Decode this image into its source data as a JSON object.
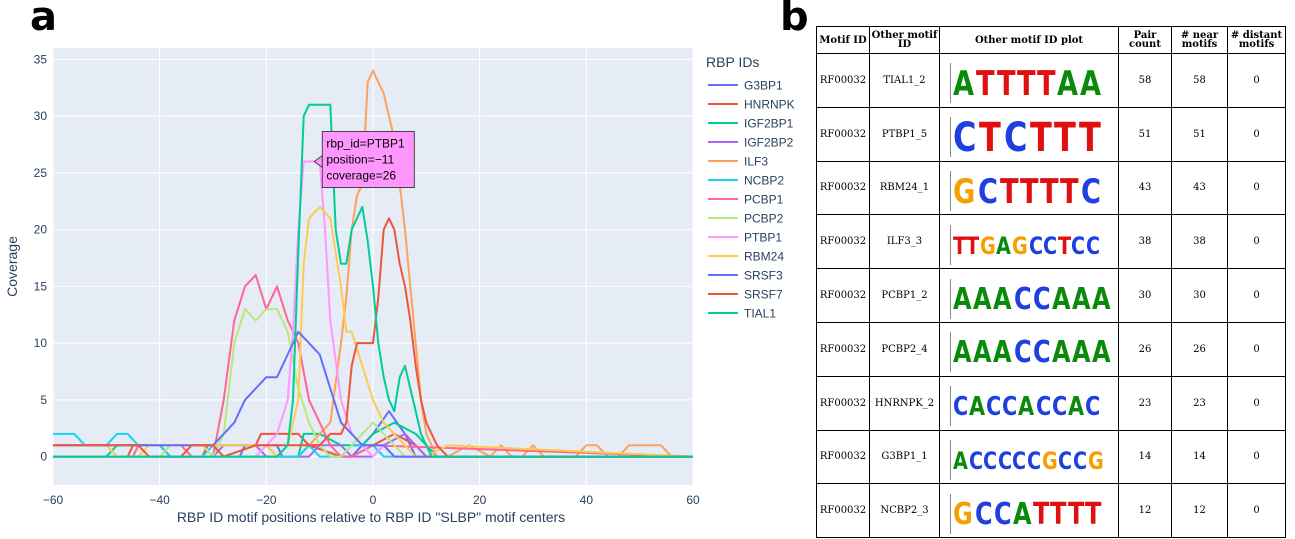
{
  "panel_a_letter": "a",
  "panel_b_letter": "b",
  "chart_data": {
    "type": "line",
    "xlabel": "RBP ID motif positions relative to RBP ID \"SLBP\" motif centers",
    "ylabel": "Coverage",
    "xlim": [
      -60,
      60
    ],
    "ylim": [
      -2.5,
      36
    ],
    "xticks": [
      -60,
      -40,
      -20,
      0,
      20,
      40,
      60
    ],
    "xtick_labels": [
      "−60",
      "−40",
      "−20",
      "0",
      "20",
      "40",
      "60"
    ],
    "yticks": [
      0,
      5,
      10,
      15,
      20,
      25,
      30,
      35
    ],
    "legend_title": "RBP IDs",
    "legend_position": "right",
    "grid": true,
    "series": [
      {
        "name": "G3BP1",
        "color": "#636efa",
        "x": [
          -60,
          -25,
          -24,
          -18,
          -17,
          -14,
          -12,
          -10,
          -8,
          -4,
          -2,
          0,
          3,
          6,
          8,
          20,
          60
        ],
        "y": [
          0,
          0,
          1,
          1,
          0,
          0,
          1,
          1,
          0,
          0,
          1,
          2,
          4,
          2,
          0,
          0,
          0
        ]
      },
      {
        "name": "HNRNPK",
        "color": "#ef553b",
        "x": [
          -60,
          -46,
          -45,
          -40,
          -38,
          -32,
          -31,
          -22,
          -21,
          -14,
          -12,
          -6,
          -4,
          0,
          4,
          8,
          10,
          60
        ],
        "y": [
          0,
          0,
          1,
          1,
          0,
          0,
          1,
          1,
          2,
          2,
          1,
          0,
          0,
          1,
          2,
          1,
          0,
          0
        ]
      },
      {
        "name": "IGF2BP1",
        "color": "#00cc96",
        "x": [
          -60,
          -50,
          -48,
          -40,
          -38,
          -14,
          -13,
          -10,
          -6,
          -2,
          0,
          4,
          8,
          12,
          60
        ],
        "y": [
          0,
          0,
          1,
          1,
          0,
          0,
          2,
          2,
          1,
          1,
          2,
          3,
          2,
          0,
          0
        ]
      },
      {
        "name": "IGF2BP2",
        "color": "#ab63fa",
        "x": [
          -60,
          -30,
          -28,
          -22,
          -20,
          -12,
          -10,
          -6,
          -4,
          0,
          2,
          6,
          10,
          60
        ],
        "y": [
          0,
          0,
          1,
          1,
          0,
          0,
          1,
          1,
          0,
          0,
          1,
          2,
          0,
          0
        ]
      },
      {
        "name": "ILF3",
        "color": "#ffa15a",
        "x": [
          -60,
          -14,
          -12,
          -10,
          -8,
          -6,
          -5,
          -4,
          -3,
          -2,
          -1,
          0,
          1,
          2,
          3,
          4,
          5,
          6,
          7,
          8,
          9,
          10,
          11,
          12,
          14,
          18,
          22,
          24,
          26,
          28,
          30,
          32,
          34,
          36,
          38,
          40,
          42,
          44,
          46,
          48,
          50,
          52,
          54,
          56,
          58,
          60
        ],
        "y": [
          0,
          0,
          1,
          2,
          3,
          10,
          14,
          20,
          23,
          24,
          33,
          34,
          33,
          32,
          30,
          28,
          24,
          20,
          15,
          10,
          5,
          2,
          1,
          0,
          0,
          1,
          0,
          1,
          0,
          0,
          1,
          0,
          0,
          0,
          0,
          1,
          1,
          0,
          0,
          1,
          1,
          1,
          1,
          0,
          0,
          0
        ]
      },
      {
        "name": "NCBP2",
        "color": "#19d3f3",
        "x": [
          -60,
          -56,
          -54,
          -50,
          -48,
          -46,
          -44,
          -40,
          -38,
          -32,
          -30,
          -20,
          -18,
          -14,
          -12,
          -10,
          -6,
          -4,
          0,
          2,
          60
        ],
        "y": [
          2,
          2,
          1,
          1,
          2,
          2,
          1,
          1,
          0,
          0,
          1,
          1,
          0,
          0,
          1,
          0,
          0,
          1,
          1,
          0,
          0
        ]
      },
      {
        "name": "PCBP1",
        "color": "#ff6692",
        "x": [
          -60,
          -45,
          -44,
          -36,
          -34,
          -30,
          -28,
          -26,
          -24,
          -22,
          -20,
          -18,
          -16,
          -14,
          -12,
          -10,
          -8,
          -6,
          -4,
          0,
          60
        ],
        "y": [
          0,
          0,
          1,
          1,
          0,
          0,
          5,
          12,
          15,
          16,
          13,
          15,
          12,
          10,
          5,
          3,
          1,
          0,
          0,
          1,
          0
        ]
      },
      {
        "name": "PCBP2",
        "color": "#b6e880",
        "x": [
          -60,
          -40,
          -38,
          -32,
          -30,
          -28,
          -26,
          -24,
          -22,
          -20,
          -18,
          -16,
          -14,
          -12,
          -10,
          -8,
          -6,
          -4,
          -2,
          0,
          2,
          4,
          6,
          8,
          10,
          60
        ],
        "y": [
          0,
          0,
          1,
          1,
          0,
          2,
          10,
          13,
          12,
          13,
          13,
          11,
          6,
          3,
          1,
          0,
          0,
          1,
          2,
          3,
          2,
          1,
          0,
          0,
          0,
          0
        ]
      },
      {
        "name": "PTBP1",
        "color": "#ff97ff",
        "x": [
          -60,
          -22,
          -20,
          -18,
          -16,
          -15,
          -14,
          -13,
          -12,
          -11,
          -10,
          -9,
          -8,
          -6,
          -4,
          -2,
          0,
          2,
          4,
          6,
          60
        ],
        "y": [
          0,
          0,
          1,
          2,
          5,
          11,
          20,
          26,
          26,
          26,
          26,
          20,
          12,
          5,
          2,
          1,
          0,
          1,
          0,
          0,
          0
        ]
      },
      {
        "name": "RBM24",
        "color": "#fecb52",
        "x": [
          -60,
          -50,
          -48,
          -44,
          -42,
          -20,
          -18,
          -16,
          -14,
          -13,
          -12,
          -10,
          -8,
          -6,
          -5,
          -4,
          -2,
          0,
          2,
          4,
          6,
          8,
          10,
          14,
          60
        ],
        "y": [
          1,
          1,
          0,
          0,
          1,
          1,
          0,
          1,
          5,
          17,
          21,
          22,
          21,
          15,
          11,
          11,
          8,
          5,
          3,
          2,
          1,
          0,
          0,
          1,
          0
        ]
      },
      {
        "name": "SRSF3",
        "color": "#636efa",
        "x": [
          -60,
          -30,
          -28,
          -26,
          -24,
          -22,
          -20,
          -18,
          -16,
          -14,
          -12,
          -10,
          -8,
          -6,
          -4,
          -2,
          0,
          2,
          4,
          6,
          8,
          60
        ],
        "y": [
          1,
          1,
          2,
          3,
          5,
          6,
          7,
          7,
          9,
          11,
          10,
          9,
          6,
          3,
          2,
          1,
          1,
          1,
          0,
          0,
          0,
          0
        ]
      },
      {
        "name": "SRSF7",
        "color": "#ef553b",
        "x": [
          -60,
          -44,
          -42,
          -36,
          -34,
          -30,
          -28,
          -22,
          -20,
          -10,
          -8,
          -6,
          -5,
          -4,
          -3,
          -2,
          -1,
          0,
          1,
          2,
          3,
          4,
          5,
          6,
          7,
          8,
          9,
          10,
          12,
          14,
          60
        ],
        "y": [
          1,
          1,
          0,
          0,
          1,
          1,
          0,
          1,
          1,
          1,
          2,
          2,
          3,
          8,
          10,
          10,
          10,
          10,
          14,
          20,
          21,
          20,
          17,
          15,
          12,
          8,
          5,
          3,
          1,
          0,
          0
        ]
      },
      {
        "name": "TIAL1",
        "color": "#00cc96",
        "x": [
          -60,
          -18,
          -16,
          -15,
          -14,
          -13,
          -12,
          -11,
          -10,
          -9,
          -8,
          -7,
          -6,
          -5,
          -4,
          -3,
          -2,
          -1,
          0,
          1,
          2,
          3,
          4,
          5,
          6,
          7,
          8,
          9,
          10,
          11,
          12,
          60
        ],
        "y": [
          0,
          0,
          1,
          5,
          18,
          30,
          31,
          31,
          31,
          31,
          31,
          20,
          17,
          17,
          20,
          21,
          22,
          19,
          15,
          10,
          7,
          5,
          4,
          7,
          8,
          6,
          4,
          2,
          1,
          0,
          0,
          0
        ]
      }
    ],
    "tooltip": {
      "series": "PTBP1",
      "x": -11,
      "y": 26,
      "lines": [
        "rbp_id=PTBP1",
        "position=−11",
        "coverage=26"
      ]
    }
  },
  "table": {
    "headers": [
      "Motif ID",
      "Other motif ID",
      "Other motif ID plot",
      "Pair count",
      "# near motifs",
      "# distant motifs"
    ],
    "rows": [
      {
        "motif": "RF00032",
        "other": "TIAL1_2",
        "logo": "ATTTTAA",
        "pair": "58",
        "near": "58",
        "distant": "0"
      },
      {
        "motif": "RF00032",
        "other": "PTBP1_5",
        "logo": "CTCTTT",
        "pair": "51",
        "near": "51",
        "distant": "0"
      },
      {
        "motif": "RF00032",
        "other": "RBM24_1",
        "logo": "GCTTTTC",
        "pair": "43",
        "near": "43",
        "distant": "0"
      },
      {
        "motif": "RF00032",
        "other": "ILF3_3",
        "logo": "TTGAGCCTCC",
        "pair": "38",
        "near": "38",
        "distant": "0"
      },
      {
        "motif": "RF00032",
        "other": "PCBP1_2",
        "logo": "AAACCAAA",
        "pair": "30",
        "near": "30",
        "distant": "0"
      },
      {
        "motif": "RF00032",
        "other": "PCBP2_4",
        "logo": "AAACCAAA",
        "pair": "26",
        "near": "26",
        "distant": "0"
      },
      {
        "motif": "RF00032",
        "other": "HNRNPK_2",
        "logo": "CACCACCAC",
        "pair": "23",
        "near": "23",
        "distant": "0"
      },
      {
        "motif": "RF00032",
        "other": "G3BP1_1",
        "logo": "ACCCCCGCCG",
        "pair": "14",
        "near": "14",
        "distant": "0"
      },
      {
        "motif": "RF00032",
        "other": "NCBP2_3",
        "logo": "GCCATTTT",
        "pair": "12",
        "near": "12",
        "distant": "0"
      }
    ]
  },
  "nucleotide_colors": {
    "A": "#0a8a0a",
    "C": "#1f3fe0",
    "G": "#f5a000",
    "T": "#e01010"
  }
}
